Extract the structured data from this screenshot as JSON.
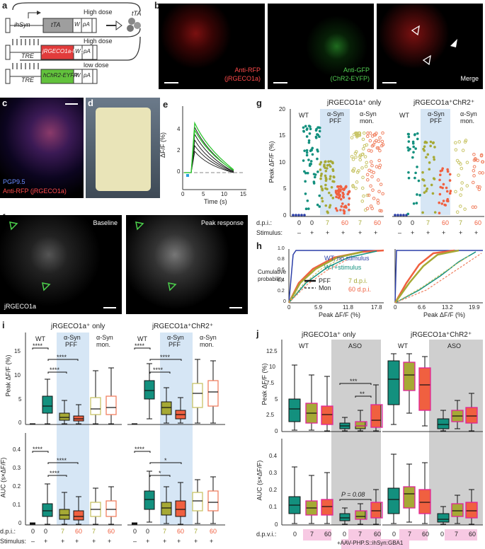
{
  "panel_labels": {
    "a": "a",
    "b": "b",
    "c": "c",
    "d": "d",
    "e": "e",
    "f": "f",
    "g": "g",
    "h": "h",
    "i": "i",
    "j": "j"
  },
  "constructs": {
    "c1": {
      "promoter": "ihSyn",
      "gene": "tTA",
      "w": "W",
      "pa": "pA",
      "dose": "High dose",
      "product": "tTA",
      "gene_color": "#9e9e9e"
    },
    "c2": {
      "promoter": "TRE",
      "gene": "jRGECO1a-NES",
      "w": "W",
      "pa": "pA",
      "dose": "High dose",
      "gene_color": "#e23b3b"
    },
    "c3": {
      "promoter": "TRE",
      "gene": "hChR2-EYFP",
      "w": "W",
      "pa": "pA",
      "dose": "low dose",
      "gene_color": "#62c23c"
    }
  },
  "panel_b": {
    "red_label_1": "Anti-RFP",
    "red_label_2": "(jRGECO1a)",
    "green_label_1": "Anti-GFP",
    "green_label_2": "(ChR2-EYFP)",
    "merge_label": "Merge"
  },
  "panel_c": {
    "label_blue": "PGP9.5",
    "label_red": "Anti-RFP (jRGECO1a)"
  },
  "panel_e": {
    "ylabel": "ΔF/F (%)",
    "xlabel": "Time (s)",
    "yticks": [
      "0",
      "2",
      "4"
    ],
    "xticks": [
      "0",
      "5",
      "10",
      "15"
    ]
  },
  "panel_f": {
    "left_label": "Baseline",
    "right_label": "Peak response",
    "bottom_label": "jRGECO1a"
  },
  "panel_g": {
    "left_title": "jRGECO1a⁺ only",
    "right_title": "jRGECO1a⁺ChR2⁺",
    "ylabel": "Peak ΔF/F (%)",
    "yticks": [
      "0",
      "5",
      "10",
      "15",
      "20"
    ],
    "group_wt": "WT",
    "group_pff_1": "α-Syn",
    "group_pff_2": "PFF",
    "group_mon_1": "α-Syn",
    "group_mon_2": "mon.",
    "dpi_label": "d.p.i.:",
    "stim_label": "Stimulus:",
    "dpi_values": [
      "0",
      "0",
      "7",
      "60",
      "7",
      "60"
    ],
    "stim_values": [
      "–",
      "+",
      "+",
      "+",
      "+",
      "+"
    ]
  },
  "panel_h": {
    "ylabel_1": "Cumulative",
    "ylabel_2": "probability",
    "xlabel": "Peak ΔF/F (%)",
    "left_xticks": [
      "0",
      "5.9",
      "11.8",
      "17.8"
    ],
    "right_xticks": [
      "0",
      "6.6",
      "13.2",
      "19.9"
    ],
    "yticks": [
      "0",
      "0.2",
      "0.4",
      "0.6",
      "0.8",
      "1.0"
    ],
    "legend_wt_nostim": "WT, no stimulus",
    "legend_wt_stim": "WT+stimulus",
    "legend_pff": "PFF",
    "legend_mon": "Mon",
    "legend_7": "7 d.p.i.",
    "legend_60": "60 d.p.i."
  },
  "panel_i": {
    "left_title": "jRGECO1a⁺ only",
    "right_title": "jRGECO1a⁺ChR2⁺",
    "ylabel_top": "Peak ΔF/F (%)",
    "ylabel_bottom": "AUC (s×ΔF/F)",
    "yticks_top": [
      "0",
      "5",
      "10",
      "15"
    ],
    "yticks_bottom": [
      "0",
      "0.1",
      "0.2",
      "0.3",
      "0.4"
    ],
    "group_wt": "WT",
    "group_pff_1": "α-Syn",
    "group_pff_2": "PFF",
    "group_mon_1": "α-Syn",
    "group_mon_2": "mon.",
    "stars4": "****",
    "stars1": "*",
    "dpi_label": "d.p.i.:",
    "stim_label": "Stimulus:",
    "dpi_values": [
      "0",
      "0",
      "7",
      "60",
      "7",
      "60"
    ],
    "stim_values": [
      "–",
      "+",
      "+",
      "+",
      "+",
      "+"
    ]
  },
  "panel_j": {
    "left_title": "jRGECO1a⁺ only",
    "right_title": "jRGECO1a⁺ChR2⁺",
    "ylabel_top": "Peak ΔF/F (%)",
    "ylabel_bottom": "AUC (s×ΔF/F)",
    "yticks_top": [
      "0",
      "2.5",
      "5",
      "7.5",
      "10",
      "12.5"
    ],
    "yticks_bottom": [
      "0",
      "0.1",
      "0.2",
      "0.3",
      "0.4"
    ],
    "group_wt": "WT",
    "group_aso": "ASO",
    "stars3": "***",
    "stars2": "**",
    "pvalue": "P = 0.08",
    "dpvi_label": "d.p.v.i.:",
    "dpvi_values": [
      "0",
      "7",
      "60",
      "0",
      "7",
      "60"
    ],
    "vector_label": "+AAV-PHP.S::ihSyn:GBA1"
  },
  "colors": {
    "wt": "#13907e",
    "d7": "#a6a935",
    "d60": "#f06040",
    "shade": "#d6e6f5",
    "aso_shade": "#cfcfcf",
    "pink": "#f7c9e3",
    "mon7": "#c8c466",
    "mon60": "#f08060"
  }
}
